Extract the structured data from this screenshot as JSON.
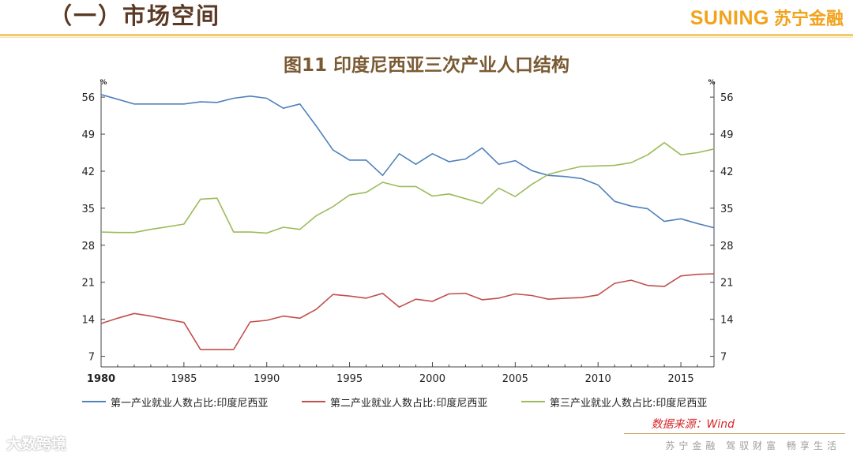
{
  "header": {
    "section_title": "（一）市场空间",
    "logo_en": "SUNING",
    "logo_cn": "苏宁金融"
  },
  "colors": {
    "primary": "#4f81bd",
    "secondary": "#c0504d",
    "tertiary": "#9bbb59",
    "accent": "#f2a21b"
  },
  "chart_data": {
    "type": "line",
    "title": "图11 印度尼西亚三次产业人口结构",
    "ylabel_left": "%",
    "ylabel_right": "%",
    "xlim": [
      1980,
      2017
    ],
    "ylim": [
      5,
      59
    ],
    "yticks": [
      7,
      14,
      21,
      28,
      35,
      42,
      49,
      56
    ],
    "xticks": [
      1980,
      1985,
      1990,
      1995,
      2000,
      2005,
      2010,
      2015
    ],
    "grid": false,
    "legend_position": "bottom",
    "x": [
      1980,
      1981,
      1982,
      1983,
      1984,
      1985,
      1986,
      1987,
      1988,
      1989,
      1990,
      1991,
      1992,
      1993,
      1994,
      1995,
      1996,
      1997,
      1998,
      1999,
      2000,
      2001,
      2002,
      2003,
      2004,
      2005,
      2006,
      2007,
      2008,
      2009,
      2010,
      2011,
      2012,
      2013,
      2014,
      2015,
      2016,
      2017
    ],
    "series": [
      {
        "name": "第一产业就业人数占比:印度尼西亚",
        "color": "#4f81bd",
        "values": [
          56.5,
          55.6,
          54.7,
          54.7,
          54.7,
          54.7,
          55.1,
          55.0,
          55.8,
          56.2,
          55.8,
          53.9,
          54.7,
          50.5,
          46.0,
          44.1,
          44.1,
          41.2,
          45.3,
          43.3,
          45.3,
          43.8,
          44.3,
          46.4,
          43.3,
          44.0,
          42.1,
          41.2,
          41.0,
          40.6,
          39.4,
          36.3,
          35.4,
          34.9,
          32.5,
          33.0,
          32.1,
          31.3
        ]
      },
      {
        "name": "第二产业就业人数占比:印度尼西亚",
        "color": "#c0504d",
        "values": [
          13.2,
          14.2,
          15.1,
          14.6,
          14.0,
          13.4,
          8.3,
          8.3,
          8.3,
          13.5,
          13.8,
          14.6,
          14.2,
          15.9,
          18.7,
          18.4,
          18.0,
          18.9,
          16.3,
          17.8,
          17.4,
          18.8,
          18.9,
          17.7,
          18.0,
          18.8,
          18.5,
          17.8,
          18.0,
          18.1,
          18.6,
          20.8,
          21.4,
          20.4,
          20.2,
          22.2,
          22.5,
          22.6
        ]
      },
      {
        "name": "第三产业就业人数占比:印度尼西亚",
        "color": "#9bbb59",
        "values": [
          30.5,
          30.4,
          30.4,
          31.0,
          31.5,
          32.0,
          36.7,
          36.9,
          30.5,
          30.5,
          30.3,
          31.4,
          31.0,
          33.6,
          35.3,
          37.5,
          38.0,
          39.9,
          39.1,
          39.1,
          37.3,
          37.7,
          36.8,
          35.9,
          38.8,
          37.2,
          39.5,
          41.4,
          42.2,
          42.9,
          43.0,
          43.1,
          43.6,
          45.1,
          47.4,
          45.1,
          45.5,
          46.2
        ]
      }
    ]
  },
  "source": "数据来源：Wind",
  "footer": {
    "slogan": "苏宁金融 驾驭财富 畅享生活",
    "watermark": "大数跨境"
  }
}
